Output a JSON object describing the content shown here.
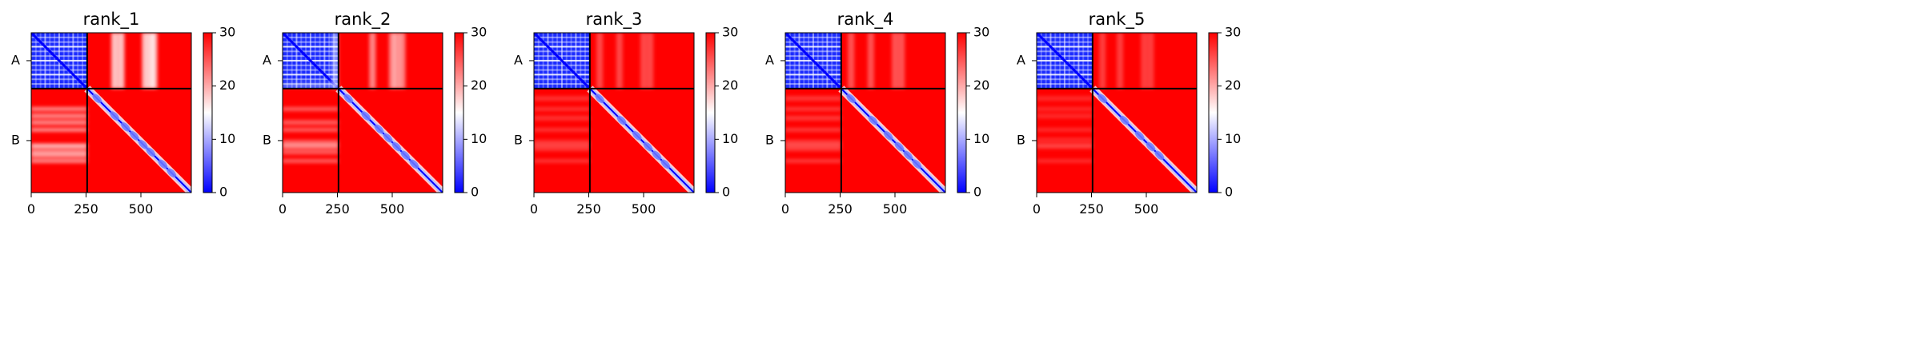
{
  "chart_data": [
    {
      "type": "heatmap",
      "title": "rank_1",
      "xlim": [
        0,
        730
      ],
      "x_ticks": [
        "0",
        "250",
        "500"
      ],
      "x_tick_values": [
        0,
        250,
        500
      ],
      "chain_boundary": 255,
      "y_tick_labels": [
        "A",
        "B"
      ],
      "colorbar": {
        "min": 0,
        "max": 30,
        "ticks": [
          "0",
          "10",
          "20",
          "30"
        ],
        "tick_values": [
          0,
          10,
          20,
          30
        ]
      },
      "colormap": [
        "#0000ff",
        "#ffffff",
        "#ff0000"
      ],
      "features": {
        "intra_A": 0.75,
        "inter_stripes": [
          380,
          410,
          520,
          545,
          560
        ],
        "inter_strength": 0.95,
        "b_diag_blobs": [
          300,
          380,
          430,
          470,
          510,
          545,
          600,
          640
        ]
      }
    },
    {
      "type": "heatmap",
      "title": "rank_2",
      "xlim": [
        0,
        730
      ],
      "x_ticks": [
        "0",
        "250",
        "500"
      ],
      "x_tick_values": [
        0,
        250,
        500
      ],
      "chain_boundary": 255,
      "y_tick_labels": [
        "A",
        "B"
      ],
      "colorbar": {
        "min": 0,
        "max": 30,
        "ticks": [
          "0",
          "10",
          "20",
          "30"
        ],
        "tick_values": [
          0,
          10,
          20,
          30
        ]
      },
      "colormap": [
        "#0000ff",
        "#ffffff",
        "#ff0000"
      ],
      "features": {
        "intra_A": 0.75,
        "inter_stripes": [
          240,
          410,
          500,
          520,
          545
        ],
        "inter_strength": 0.65,
        "b_diag_blobs": [
          300,
          380,
          440,
          480,
          520,
          560,
          600
        ]
      }
    },
    {
      "type": "heatmap",
      "title": "rank_3",
      "xlim": [
        0,
        730
      ],
      "x_ticks": [
        "0",
        "250",
        "500"
      ],
      "x_tick_values": [
        0,
        250,
        500
      ],
      "chain_boundary": 255,
      "y_tick_labels": [
        "A",
        "B"
      ],
      "colorbar": {
        "min": 0,
        "max": 30,
        "ticks": [
          "0",
          "10",
          "20",
          "30"
        ],
        "tick_values": [
          0,
          10,
          20,
          30
        ]
      },
      "colormap": [
        "#0000ff",
        "#ffffff",
        "#ff0000"
      ],
      "features": {
        "intra_A": 0.75,
        "inter_stripes": [
          300,
          390,
          500,
          530
        ],
        "inter_strength": 0.35,
        "b_diag_blobs": [
          300,
          400,
          470,
          520,
          560,
          600
        ]
      }
    },
    {
      "type": "heatmap",
      "title": "rank_4",
      "xlim": [
        0,
        730
      ],
      "x_ticks": [
        "0",
        "250",
        "500"
      ],
      "x_tick_values": [
        0,
        250,
        500
      ],
      "chain_boundary": 255,
      "y_tick_labels": [
        "A",
        "B"
      ],
      "colorbar": {
        "min": 0,
        "max": 30,
        "ticks": [
          "0",
          "10",
          "20",
          "30"
        ],
        "tick_values": [
          0,
          10,
          20,
          30
        ]
      },
      "colormap": [
        "#0000ff",
        "#ffffff",
        "#ff0000"
      ],
      "features": {
        "intra_A": 0.75,
        "inter_stripes": [
          300,
          390,
          500,
          530
        ],
        "inter_strength": 0.4,
        "b_diag_blobs": [
          300,
          400,
          470,
          520,
          560,
          600
        ]
      }
    },
    {
      "type": "heatmap",
      "title": "rank_5",
      "xlim": [
        0,
        730
      ],
      "x_ticks": [
        "0",
        "250",
        "500"
      ],
      "x_tick_values": [
        0,
        250,
        500
      ],
      "chain_boundary": 255,
      "y_tick_labels": [
        "A",
        "B"
      ],
      "colorbar": {
        "min": 0,
        "max": 30,
        "ticks": [
          "0",
          "10",
          "20",
          "30"
        ],
        "tick_values": [
          0,
          10,
          20,
          30
        ]
      },
      "colormap": [
        "#0000ff",
        "#ffffff",
        "#ff0000"
      ],
      "features": {
        "intra_A": 0.75,
        "inter_stripes": [
          300,
          380,
          490,
          520
        ],
        "inter_strength": 0.3,
        "b_diag_blobs": [
          300,
          400,
          470,
          520,
          560
        ]
      }
    }
  ]
}
